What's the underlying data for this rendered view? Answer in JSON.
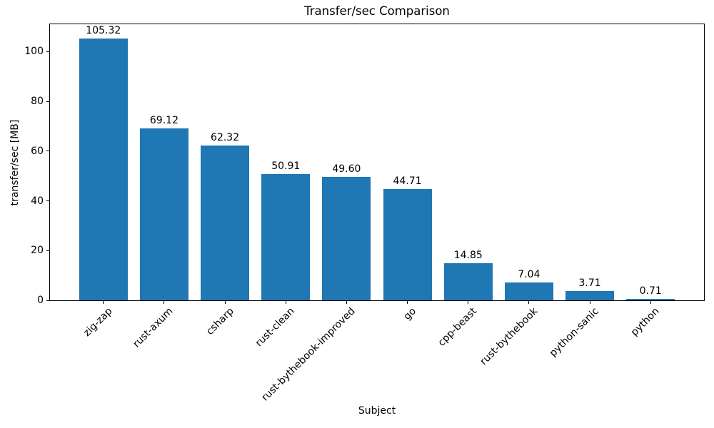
{
  "figure": {
    "background": "#ffffff"
  },
  "chart_data": {
    "type": "bar",
    "title": "Transfer/sec Comparison",
    "xlabel": "Subject",
    "ylabel": "transfer/sec [MB]",
    "categories": [
      "zig-zap",
      "rust-axum",
      "csharp",
      "rust-clean",
      "rust-bythebook-improved",
      "go",
      "cpp-beast",
      "rust-bythebook",
      "python-sanic",
      "python"
    ],
    "values": [
      105.32,
      69.12,
      62.32,
      50.91,
      49.6,
      44.71,
      14.85,
      7.04,
      3.71,
      0.71
    ],
    "value_labels": [
      "105.32",
      "69.12",
      "62.32",
      "50.91",
      "49.60",
      "44.71",
      "14.85",
      "7.04",
      "3.71",
      "0.71"
    ],
    "yticks": [
      0,
      20,
      40,
      60,
      80,
      100
    ],
    "ylim": [
      0,
      111.3
    ],
    "bar_width_fraction": 0.8,
    "bar_color": "#1f77b4",
    "axis_color": "#000000",
    "text_color": "#000000",
    "grid": false,
    "legend_position": "none",
    "x_tick_rotation_deg": 45
  }
}
